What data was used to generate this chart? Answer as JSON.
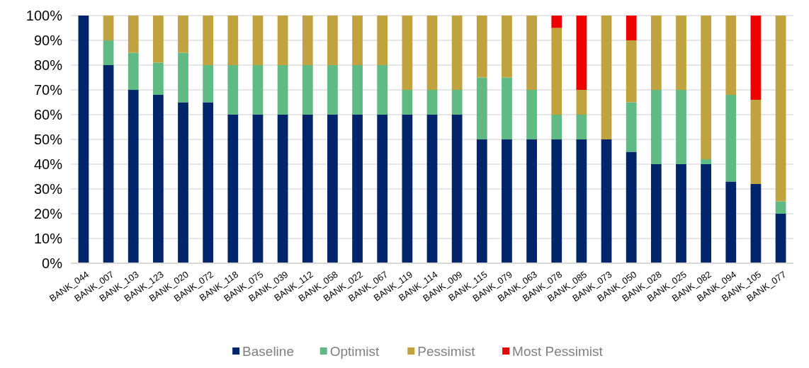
{
  "chart_data": {
    "type": "bar",
    "stacked": true,
    "categories": [
      "BANK_044",
      "BANK_007",
      "BANK_103",
      "BANK_123",
      "BANK_020",
      "BANK_072",
      "BANK_118",
      "BANK_075",
      "BANK_039",
      "BANK_112",
      "BANK_058",
      "BANK_022",
      "BANK_067",
      "BANK_119",
      "BANK_114",
      "BANK_009",
      "BANK_115",
      "BANK_079",
      "BANK_063",
      "BANK_078",
      "BANK_085",
      "BANK_073",
      "BANK_050",
      "BANK_028",
      "BANK_025",
      "BANK_082",
      "BANK_094",
      "BANK_105",
      "BANK_077"
    ],
    "series": [
      {
        "name": "Baseline",
        "color": "#00256a",
        "values": [
          100,
          80,
          70,
          68,
          65,
          65,
          60,
          60,
          60,
          60,
          60,
          60,
          60,
          60,
          60,
          60,
          50,
          50,
          50,
          50,
          50,
          50,
          45,
          40,
          40,
          40,
          33,
          32,
          20
        ]
      },
      {
        "name": "Optimist",
        "color": "#5fba83",
        "values": [
          0,
          10,
          15,
          13,
          20,
          15,
          20,
          20,
          20,
          20,
          20,
          20,
          20,
          10,
          10,
          10,
          25,
          25,
          20,
          10,
          10,
          0,
          20,
          30,
          30,
          2,
          35,
          0,
          5
        ]
      },
      {
        "name": "Pessimist",
        "color": "#c0a23f",
        "values": [
          0,
          10,
          15,
          19,
          15,
          20,
          20,
          20,
          20,
          20,
          20,
          20,
          20,
          30,
          30,
          30,
          25,
          25,
          30,
          35,
          10,
          50,
          25,
          30,
          30,
          58,
          32,
          34,
          75
        ]
      },
      {
        "name": "Most Pessimist",
        "color": "#ee0000",
        "values": [
          0,
          0,
          0,
          0,
          0,
          0,
          0,
          0,
          0,
          0,
          0,
          0,
          0,
          0,
          0,
          0,
          0,
          0,
          0,
          5,
          30,
          0,
          10,
          0,
          0,
          0,
          0,
          34,
          0
        ]
      }
    ],
    "ylim": [
      0,
      100
    ],
    "yticks": [
      {
        "value": 0,
        "label": "0%"
      },
      {
        "value": 10,
        "label": "10%"
      },
      {
        "value": 20,
        "label": "20%"
      },
      {
        "value": 30,
        "label": "30%"
      },
      {
        "value": 40,
        "label": "40%"
      },
      {
        "value": 50,
        "label": "50%"
      },
      {
        "value": 60,
        "label": "60%"
      },
      {
        "value": 70,
        "label": "70%"
      },
      {
        "value": 80,
        "label": "80%"
      },
      {
        "value": 90,
        "label": "90%"
      },
      {
        "value": 100,
        "label": "100%"
      }
    ],
    "grid": "y",
    "legend": "bottom"
  }
}
